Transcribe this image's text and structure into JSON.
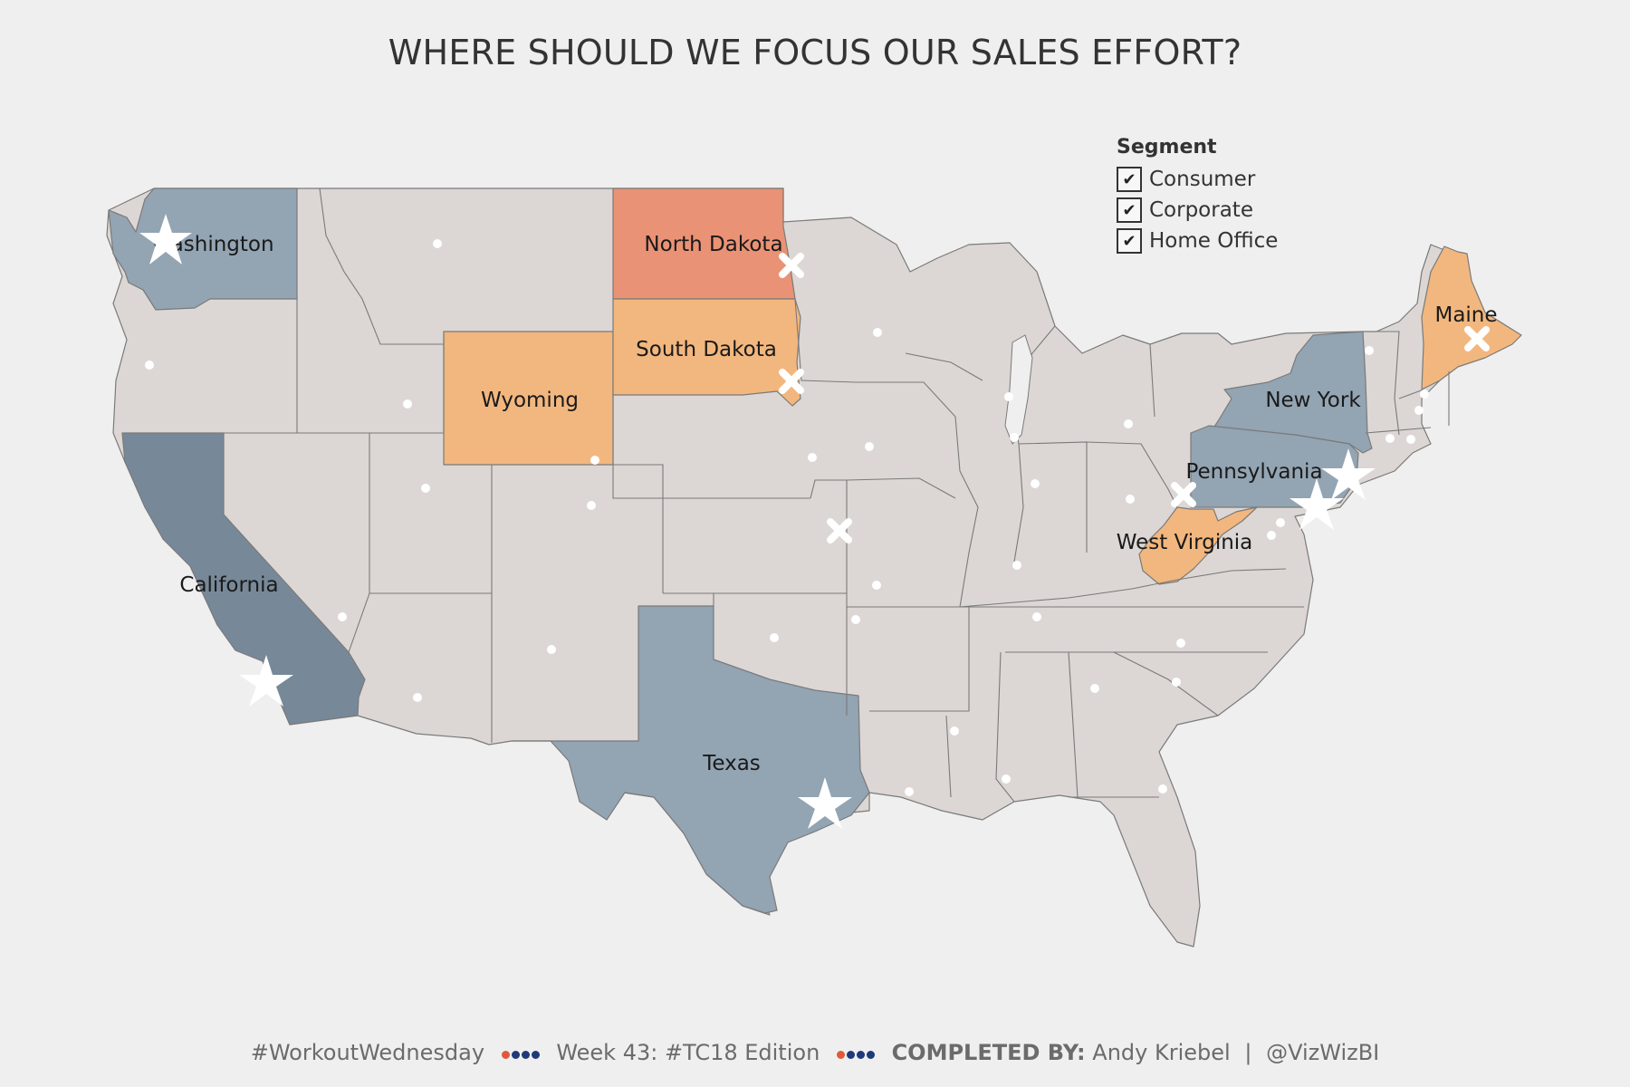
{
  "title": "WHERE SHOULD WE FOCUS OUR SALES EFFORT?",
  "colors": {
    "background": "#efefef",
    "neutral": "#dcd7d4",
    "blue_light": "#93a4b3",
    "blue_dark": "#778899",
    "orange": "#f2b77e",
    "red_orange": "#ea9275",
    "marker": "#ffffff",
    "footer_red": "#e05a3a",
    "footer_blue": "#1f3a7a"
  },
  "legend": {
    "title": "Segment",
    "items": [
      {
        "label": "Consumer",
        "checked": true
      },
      {
        "label": "Corporate",
        "checked": true
      },
      {
        "label": "Home Office",
        "checked": true
      }
    ]
  },
  "states": [
    {
      "name": "Washington",
      "category": "top"
    },
    {
      "name": "California",
      "category": "top_highest"
    },
    {
      "name": "Texas",
      "category": "top"
    },
    {
      "name": "New York",
      "category": "top"
    },
    {
      "name": "Pennsylvania",
      "category": "top"
    },
    {
      "name": "North Dakota",
      "category": "bottom_lowest"
    },
    {
      "name": "South Dakota",
      "category": "bottom"
    },
    {
      "name": "Wyoming",
      "category": "bottom"
    },
    {
      "name": "West Virginia",
      "category": "bottom"
    },
    {
      "name": "Maine",
      "category": "bottom"
    }
  ],
  "markers": {
    "star_icon": "star-icon",
    "x_icon": "x-icon",
    "dot_icon": "dot-icon"
  },
  "footer": {
    "hashtag": "#WorkoutWednesday",
    "week": "Week 43: #TC18 Edition",
    "completed_label": "COMPLETED BY:",
    "author": "Andy Kriebel",
    "separator": "|",
    "handle": "@VizWizBI"
  }
}
